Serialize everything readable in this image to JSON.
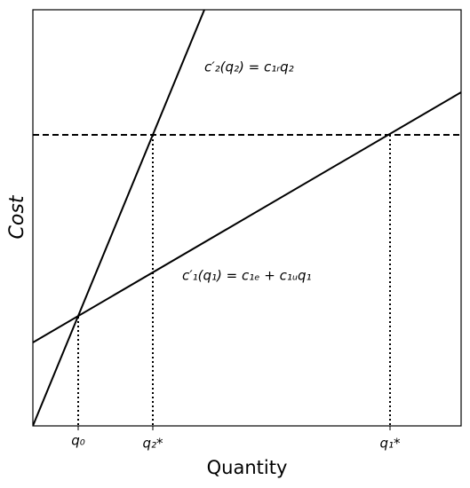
{
  "axes": {
    "x_label": "Quantity",
    "y_label": "Cost"
  },
  "curves": [
    {
      "label": "c′₂(q₂) = c₁ᵣq₂"
    },
    {
      "label": "c′₁(q₁) = c₁ₑ + c₁ᵤq₁"
    }
  ],
  "x_markers": [
    "q₀",
    "q₂*",
    "q₁*"
  ]
}
